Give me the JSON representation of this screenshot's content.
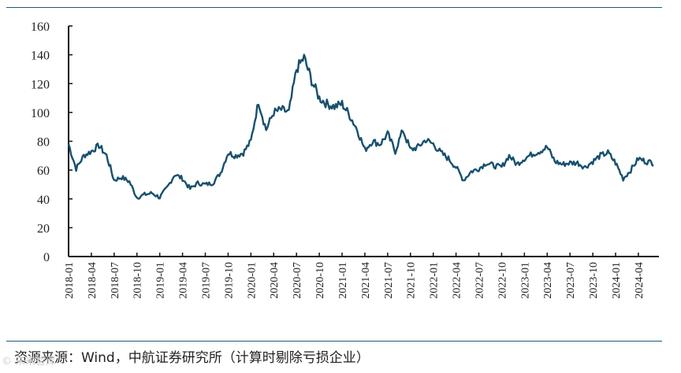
{
  "source_note": "资源来源：Wind，中航证券研究所（计算时剔除亏损企业）",
  "watermark": "© 未来智库",
  "colors": {
    "line": "#17506e",
    "axis": "#111111",
    "rule": "#1f5a7a"
  },
  "chart_data": {
    "type": "line",
    "title": "",
    "xlabel": "",
    "ylabel": "",
    "ylim": [
      0,
      160
    ],
    "y_ticks": [
      0,
      20,
      40,
      60,
      80,
      100,
      120,
      140,
      160
    ],
    "x_ticks": [
      "2018-01",
      "2018-04",
      "2018-07",
      "2018-10",
      "2019-01",
      "2019-04",
      "2019-07",
      "2019-10",
      "2020-01",
      "2020-04",
      "2020-07",
      "2020-10",
      "2021-01",
      "2021-04",
      "2021-07",
      "2021-10",
      "2022-01",
      "2022-04",
      "2022-07",
      "2022-10",
      "2023-01",
      "2023-04",
      "2023-07",
      "2023-10",
      "2024-01",
      "2024-04"
    ],
    "grid": false,
    "series": [
      {
        "x": [
          "2018-01",
          "2018-02",
          "2018-03",
          "2018-04",
          "2018-05",
          "2018-06",
          "2018-07",
          "2018-08",
          "2018-09",
          "2018-10",
          "2018-11",
          "2018-12",
          "2019-01",
          "2019-02",
          "2019-03",
          "2019-04",
          "2019-05",
          "2019-06",
          "2019-07",
          "2019-08",
          "2019-09",
          "2019-10",
          "2019-11",
          "2019-12",
          "2020-01",
          "2020-02",
          "2020-03",
          "2020-04",
          "2020-05",
          "2020-06",
          "2020-07",
          "2020-08",
          "2020-09",
          "2020-10",
          "2020-11",
          "2020-12",
          "2021-01",
          "2021-02",
          "2021-03",
          "2021-04",
          "2021-05",
          "2021-06",
          "2021-07",
          "2021-08",
          "2021-09",
          "2021-10",
          "2021-11",
          "2021-12",
          "2022-01",
          "2022-02",
          "2022-03",
          "2022-04",
          "2022-05",
          "2022-06",
          "2022-07",
          "2022-08",
          "2022-09",
          "2022-10",
          "2022-11",
          "2022-12",
          "2023-01",
          "2023-02",
          "2023-03",
          "2023-04",
          "2023-05",
          "2023-06",
          "2023-07",
          "2023-08",
          "2023-09",
          "2023-10",
          "2023-11",
          "2023-12",
          "2024-01",
          "2024-02",
          "2024-03",
          "2024-04",
          "2024-05",
          "2024-06"
        ],
        "values": [
          78,
          61,
          70,
          73,
          77,
          70,
          53,
          55,
          52,
          41,
          43,
          44,
          41,
          48,
          57,
          54,
          47,
          51,
          50,
          51,
          58,
          72,
          70,
          72,
          80,
          108,
          88,
          100,
          102,
          100,
          130,
          138,
          122,
          110,
          106,
          104,
          106,
          98,
          88,
          74,
          80,
          78,
          85,
          73,
          88,
          74,
          76,
          81,
          78,
          72,
          68,
          62,
          53,
          59,
          61,
          65,
          63,
          62,
          70,
          64,
          68,
          71,
          73,
          76,
          66,
          64,
          65,
          65,
          62,
          66,
          70,
          72,
          65,
          54,
          60,
          68,
          66,
          65
        ]
      }
    ]
  }
}
